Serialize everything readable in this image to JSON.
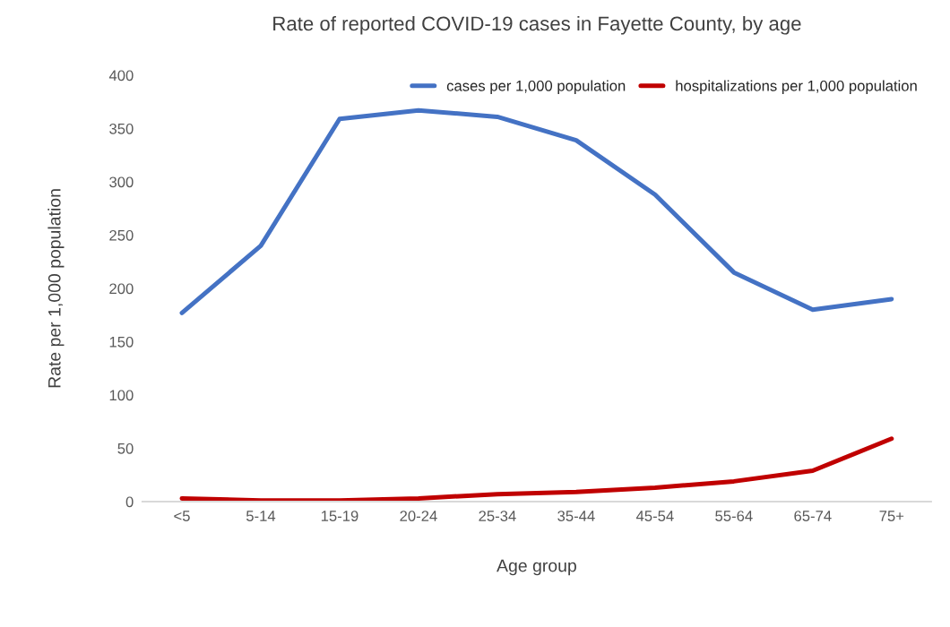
{
  "chart_data": {
    "type": "line",
    "title": "Rate of reported COVID-19 cases in Fayette County, by age",
    "xlabel": "Age group",
    "ylabel": "Rate per 1,000 population",
    "categories": [
      "<5",
      "5-14",
      "15-19",
      "20-24",
      "25-34",
      "35-44",
      "45-54",
      "55-64",
      "65-74",
      "75+"
    ],
    "series": [
      {
        "name": "cases per 1,000 population",
        "color": "#4472c4",
        "values": [
          177,
          240,
          359,
          367,
          361,
          339,
          288,
          215,
          180,
          190
        ]
      },
      {
        "name": "hospitalizations per 1,000 population",
        "color": "#c00000",
        "values": [
          3,
          1,
          1,
          3,
          7,
          9,
          13,
          19,
          29,
          59
        ]
      }
    ],
    "ylim": [
      0,
      400
    ],
    "yticks": [
      0,
      50,
      100,
      150,
      200,
      250,
      300,
      350,
      400
    ],
    "grid": false,
    "legend": "top right",
    "marker": "none",
    "line_style": "solid"
  }
}
